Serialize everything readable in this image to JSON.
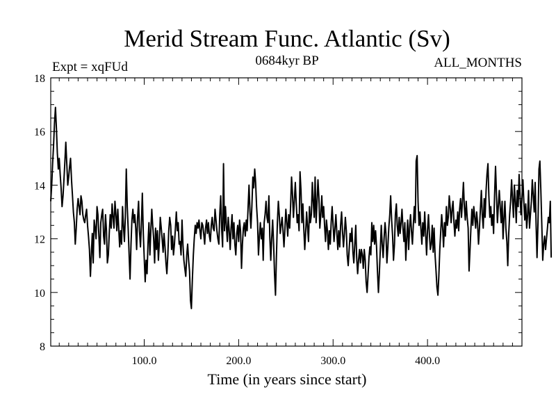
{
  "chart_data": {
    "type": "line",
    "title": "Merid Stream Func. Atlantic (Sv)",
    "subtitle": "0684kyr BP",
    "top_left_label": "Expt = xqFUd",
    "top_right_label": "ALL_MONTHS",
    "xlabel": "Time (in years since start)",
    "ylabel": "",
    "xlim": [
      1,
      500
    ],
    "ylim": [
      8,
      18
    ],
    "x_ticks": [
      100,
      200,
      300,
      400
    ],
    "x_tick_labels": [
      "100.0",
      "200.0",
      "300.0",
      "400.0"
    ],
    "y_ticks": [
      8,
      10,
      12,
      14,
      16,
      18
    ],
    "y_tick_labels": [
      "8",
      "10",
      "12",
      "14",
      "16",
      "18"
    ],
    "grid": false,
    "line_color": "#000000",
    "series": [
      {
        "name": "Merid Stream Func. Atlantic",
        "x_start": 1,
        "x_step": 1,
        "values": [
          13.4,
          14.0,
          14.8,
          15.5,
          16.3,
          16.9,
          16.1,
          15.2,
          14.6,
          15.0,
          14.4,
          13.9,
          13.2,
          13.6,
          14.2,
          14.9,
          15.6,
          14.8,
          14.0,
          14.3,
          14.7,
          15.0,
          14.2,
          13.6,
          13.0,
          12.6,
          11.8,
          12.4,
          13.1,
          13.5,
          13.2,
          12.9,
          13.6,
          13.4,
          12.9,
          12.7,
          12.6,
          12.9,
          13.1,
          12.5,
          12.1,
          11.6,
          10.6,
          11.4,
          12.2,
          11.1,
          12.7,
          12.4,
          12.0,
          13.2,
          12.9,
          12.1,
          11.3,
          12.6,
          12.9,
          13.1,
          12.1,
          11.8,
          12.9,
          12.3,
          11.1,
          11.4,
          12.2,
          12.9,
          12.4,
          13.3,
          12.8,
          12.4,
          13.4,
          12.9,
          12.3,
          13.1,
          12.4,
          11.7,
          12.3,
          11.8,
          13.2,
          12.5,
          11.9,
          12.8,
          14.6,
          13.2,
          12.4,
          11.4,
          10.5,
          11.8,
          12.7,
          13.1,
          12.6,
          12.9,
          12.4,
          11.6,
          12.8,
          13.4,
          12.3,
          11.7,
          12.5,
          13.7,
          12.2,
          11.3,
          10.4,
          11.2,
          10.7,
          11.8,
          12.6,
          11.4,
          12.3,
          13.1,
          12.5,
          12.0,
          11.1,
          12.4,
          11.6,
          12.3,
          11.2,
          11.9,
          12.8,
          12.4,
          12.0,
          11.5,
          12.2,
          11.7,
          11.1,
          10.7,
          11.4,
          12.3,
          12.8,
          12.5,
          11.6,
          12.1,
          11.4,
          11.8,
          12.4,
          13.0,
          12.3,
          12.6,
          11.8,
          11.9,
          11.4,
          12.7,
          11.8,
          11.2,
          10.9,
          10.6,
          11.4,
          11.8,
          11.2,
          10.8,
          9.7,
          9.4,
          10.5,
          11.4,
          12.0,
          12.5,
          12.2,
          12.6,
          12.4,
          12.7,
          12.3,
          12.0,
          12.6,
          12.5,
          12.2,
          11.8,
          12.4,
          12.7,
          12.2,
          12.6,
          12.1,
          11.9,
          12.5,
          12.8,
          12.4,
          12.3,
          13.1,
          12.7,
          12.3,
          12.0,
          11.8,
          12.9,
          13.6,
          12.4,
          11.7,
          14.8,
          12.3,
          13.2,
          12.5,
          11.9,
          12.8,
          12.3,
          11.6,
          12.4,
          12.9,
          12.0,
          12.6,
          11.8,
          11.4,
          12.2,
          12.5,
          11.9,
          12.7,
          12.3,
          10.9,
          11.8,
          12.4,
          12.6,
          12.1,
          12.7,
          12.3,
          13.2,
          14.0,
          13.0,
          12.4,
          13.2,
          14.3,
          13.9,
          14.6,
          14.1,
          13.2,
          12.6,
          11.4,
          12.1,
          12.6,
          12.0,
          12.4,
          11.2,
          12.6,
          12.9,
          13.4,
          12.8,
          12.6,
          13.6,
          12.1,
          11.2,
          12.0,
          12.7,
          11.8,
          10.7,
          9.9,
          11.3,
          12.6,
          13.4,
          12.9,
          12.2,
          12.5,
          12.8,
          12.3,
          11.7,
          12.4,
          13.1,
          12.6,
          12.1,
          12.9,
          12.4,
          13.2,
          14.3,
          13.7,
          12.8,
          13.4,
          14.1,
          13.3,
          12.6,
          12.9,
          12.3,
          14.5,
          13.8,
          12.6,
          13.3,
          12.4,
          11.6,
          12.3,
          13.0,
          12.4,
          11.9,
          13.2,
          12.6,
          12.9,
          14.1,
          13.4,
          12.8,
          14.3,
          12.6,
          13.4,
          14.2,
          13.5,
          12.4,
          12.9,
          13.6,
          12.8,
          13.2,
          12.5,
          11.9,
          12.7,
          12.3,
          11.6,
          12.3,
          11.8,
          12.6,
          13.2,
          12.5,
          11.9,
          12.4,
          12.9,
          12.2,
          11.6,
          12.3,
          11.7,
          12.5,
          13.0,
          12.3,
          11.7,
          12.2,
          12.8,
          12.3,
          11.4,
          11.0,
          11.6,
          12.2,
          11.9,
          12.4,
          11.5,
          11.1,
          11.8,
          12.5,
          11.3,
          10.7,
          11.2,
          11.6,
          11.1,
          11.6,
          11.4,
          10.9,
          11.6,
          11.2,
          10.4,
          10.0,
          10.6,
          11.3,
          11.7,
          11.4,
          12.6,
          11.9,
          12.5,
          11.8,
          12.3,
          11.7,
          10.8,
          10.0,
          10.7,
          11.6,
          12.5,
          11.8,
          11.3,
          12.0,
          12.6,
          12.2,
          11.1,
          11.7,
          12.4,
          12.9,
          13.6,
          12.7,
          12.1,
          11.2,
          11.8,
          12.9,
          13.3,
          12.5,
          12.1,
          12.8,
          12.2,
          12.6,
          13.1,
          12.4,
          11.9,
          12.6,
          11.2,
          12.0,
          12.7,
          11.6,
          12.4,
          12.9,
          12.3,
          11.8,
          12.5,
          13.2,
          12.6,
          14.9,
          15.1,
          13.4,
          12.5,
          13.0,
          12.4,
          11.8,
          12.6,
          12.1,
          13.0,
          12.2,
          11.4,
          12.3,
          12.9,
          12.2,
          11.6,
          11.8,
          12.5,
          11.5,
          12.4,
          11.4,
          10.8,
          10.2,
          9.9,
          10.6,
          11.6,
          12.3,
          12.9,
          12.4,
          11.7,
          12.6,
          12.1,
          13.2,
          12.5,
          12.8,
          13.6,
          13.2,
          12.6,
          13.1,
          13.4,
          12.6,
          12.1,
          12.7,
          12.4,
          13.0,
          12.3,
          13.1,
          13.5,
          12.8,
          13.4,
          14.1,
          13.2,
          12.7,
          13.4,
          12.8,
          12.4,
          10.8,
          11.6,
          12.4,
          13.1,
          12.5,
          13.2,
          12.8,
          12.4,
          13.0,
          12.6,
          11.8,
          12.4,
          13.1,
          13.8,
          12.9,
          12.4,
          13.5,
          12.8,
          13.8,
          14.4,
          14.8,
          13.6,
          12.8,
          13.2,
          12.5,
          12.9,
          12.2,
          13.6,
          14.7,
          13.7,
          12.6,
          13.2,
          13.8,
          13.2,
          12.6,
          13.4,
          12.0,
          12.8,
          13.4,
          12.4,
          11.9,
          11.0,
          12.2,
          12.9,
          13.4,
          14.2,
          13.5,
          12.8,
          14.0,
          13.4,
          12.6,
          13.8,
          13.2,
          14.4,
          13.6,
          12.9,
          13.5,
          14.2,
          13.4,
          12.7,
          13.3,
          12.4,
          12.9,
          13.8,
          12.4,
          12.9,
          13.4,
          14.2,
          13.6,
          13.0,
          14.1,
          12.5,
          11.3,
          12.6,
          14.6,
          14.9,
          13.8,
          12.6,
          11.2,
          11.8,
          12.1,
          11.6,
          12.0,
          12.4,
          12.8,
          12.6,
          13.4,
          11.3
        ]
      }
    ]
  }
}
